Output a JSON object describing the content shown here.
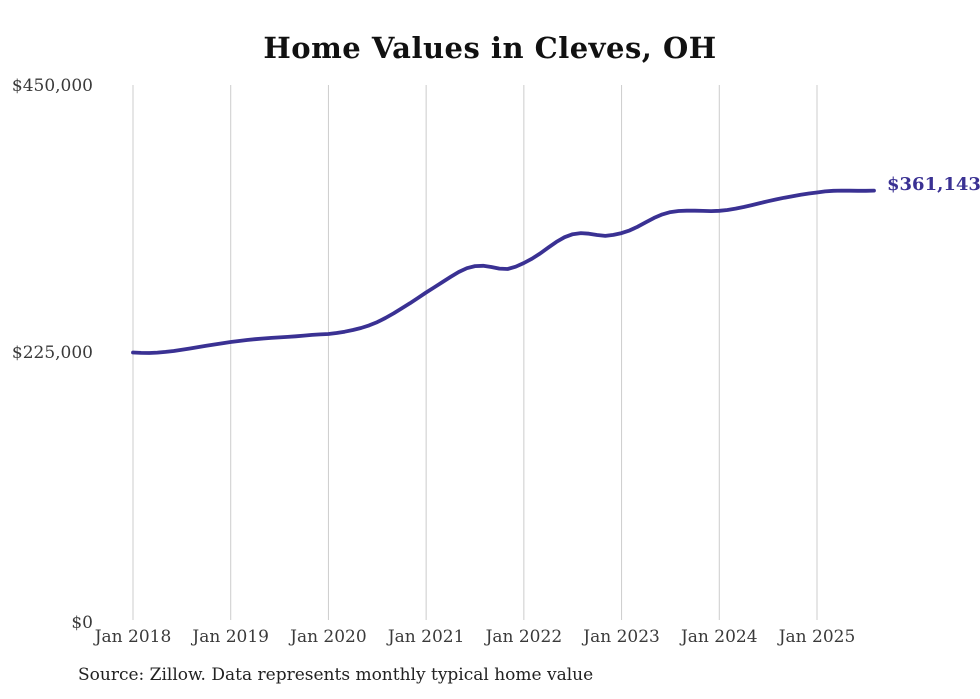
{
  "chart_data": {
    "type": "line",
    "title": "Home Values in Cleves, OH",
    "source_note": "Source: Zillow. Data represents monthly typical home value",
    "latest_value_label": "$361,143",
    "latest_value": 361143,
    "ylim": [
      0,
      450000
    ],
    "y_ticks": [
      {
        "label": "$0",
        "value": 0
      },
      {
        "label": "$225,000",
        "value": 225000
      },
      {
        "label": "$450,000",
        "value": 450000
      }
    ],
    "x_ticks": [
      {
        "label": "Jan 2018",
        "month": 0
      },
      {
        "label": "Jan 2019",
        "month": 12
      },
      {
        "label": "Jan 2020",
        "month": 24
      },
      {
        "label": "Jan 2021",
        "month": 36
      },
      {
        "label": "Jan 2022",
        "month": 48
      },
      {
        "label": "Jan 2023",
        "month": 60
      },
      {
        "label": "Jan 2024",
        "month": 72
      },
      {
        "label": "Jan 2025",
        "month": 84
      }
    ],
    "x_start": "Jan 2018",
    "x_end": "Aug 2025",
    "frequency": "monthly",
    "grid": "vertical-only",
    "legend": "none",
    "series": [
      {
        "name": "Typical home value ($)",
        "values": [
          225000,
          224700,
          224600,
          224900,
          225500,
          226300,
          227300,
          228400,
          229500,
          230600,
          231700,
          232800,
          233800,
          234700,
          235500,
          236200,
          236800,
          237300,
          237700,
          238100,
          238600,
          239200,
          239800,
          240200,
          240600,
          241400,
          242500,
          243900,
          245600,
          247800,
          250600,
          254000,
          257900,
          262100,
          266400,
          270900,
          275500,
          279800,
          284200,
          288600,
          292700,
          295900,
          297700,
          297900,
          296900,
          295600,
          295200,
          297200,
          300300,
          303900,
          308300,
          313200,
          318000,
          322000,
          324500,
          325400,
          324900,
          323800,
          323100,
          323900,
          325400,
          327700,
          330900,
          334600,
          338200,
          341200,
          343100,
          344000,
          344300,
          344300,
          344100,
          343900,
          344200,
          344900,
          346000,
          347400,
          349000,
          350700,
          352300,
          353800,
          355200,
          356500,
          357700,
          358700,
          359600,
          360500,
          361000,
          361200,
          361100,
          361000,
          361050,
          361143
        ]
      }
    ],
    "colors": {
      "line": "#3a3193",
      "grid": "#cccccc",
      "title_text": "#111111",
      "axis_text": "#3a3a3a",
      "source_text": "#222222",
      "background": "#ffffff"
    }
  }
}
